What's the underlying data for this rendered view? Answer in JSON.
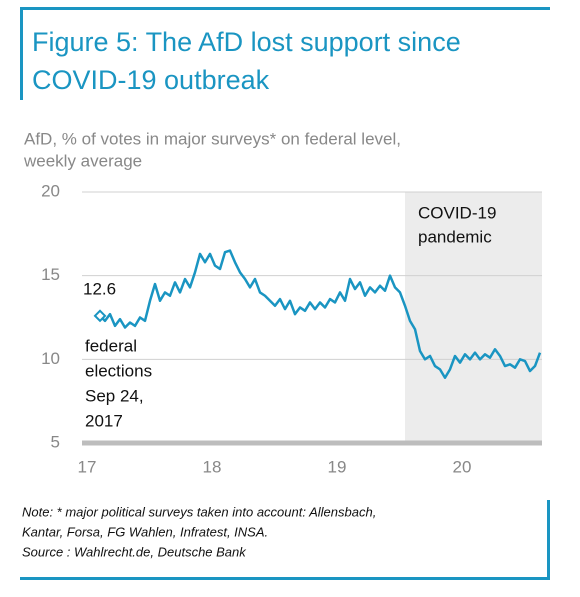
{
  "chart_data": {
    "type": "line",
    "title": [
      "Figure 5: The AfD lost support since",
      "COVID-19 outbreak"
    ],
    "subtitle": [
      "AfD, % of votes in major surveys* on federal level,",
      "weekly average"
    ],
    "x": [
      17.104,
      17.144,
      17.184,
      17.224,
      17.264,
      17.304,
      17.344,
      17.384,
      17.424,
      17.464,
      17.504,
      17.544,
      17.584,
      17.624,
      17.664,
      17.704,
      17.744,
      17.784,
      17.824,
      17.864,
      17.904,
      17.944,
      17.984,
      18.024,
      18.064,
      18.104,
      18.144,
      18.184,
      18.224,
      18.264,
      18.304,
      18.344,
      18.384,
      18.424,
      18.464,
      18.504,
      18.544,
      18.584,
      18.624,
      18.664,
      18.704,
      18.744,
      18.784,
      18.824,
      18.864,
      18.904,
      18.944,
      18.984,
      19.024,
      19.064,
      19.104,
      19.144,
      19.184,
      19.224,
      19.264,
      19.304,
      19.344,
      19.384,
      19.424,
      19.464,
      19.504,
      19.544,
      19.584,
      19.624,
      19.664,
      19.704,
      19.744,
      19.784,
      19.824,
      19.864,
      19.904,
      19.944,
      19.984,
      20.024,
      20.064,
      20.104,
      20.144,
      20.184,
      20.224,
      20.264,
      20.304,
      20.344,
      20.384,
      20.424,
      20.464,
      20.504,
      20.544,
      20.584,
      20.624
    ],
    "values": [
      12.6,
      12.3,
      12.7,
      12.0,
      12.4,
      11.9,
      12.2,
      12.0,
      12.5,
      12.3,
      13.5,
      14.5,
      13.5,
      14.0,
      13.8,
      14.6,
      14.0,
      14.8,
      14.3,
      15.2,
      16.3,
      15.8,
      16.3,
      15.6,
      15.4,
      16.4,
      16.5,
      15.8,
      15.2,
      14.8,
      14.3,
      14.8,
      14.0,
      13.8,
      13.5,
      13.2,
      13.6,
      13.0,
      13.5,
      12.7,
      13.1,
      12.9,
      13.4,
      13.0,
      13.4,
      13.1,
      13.6,
      13.4,
      14.0,
      13.5,
      14.8,
      14.2,
      14.6,
      13.8,
      14.3,
      14.0,
      14.4,
      14.1,
      15.0,
      14.3,
      14.0,
      13.2,
      12.3,
      11.8,
      10.5,
      10.0,
      10.2,
      9.6,
      9.4,
      8.9,
      9.4,
      10.2,
      9.8,
      10.3,
      10.0,
      10.4,
      10.0,
      10.3,
      10.1,
      10.6,
      10.2,
      9.6,
      9.7,
      9.5,
      10.0,
      9.9,
      9.3,
      9.6,
      10.4
    ],
    "color": "#1a95c2",
    "xlim": [
      16.96,
      20.64
    ],
    "xticks": [
      17,
      18,
      19,
      20
    ],
    "ylim": [
      5,
      20
    ],
    "yticks": [
      5,
      10,
      15,
      20
    ],
    "grid": true,
    "shaded_range": {
      "x": [
        19.544,
        20.64
      ],
      "color": "#ececec",
      "label": [
        "COVID-19",
        "pandemic"
      ]
    },
    "annotation": [
      "federal",
      "elections",
      "Sep 24,",
      "2017"
    ],
    "note": [
      "Note: * major political surveys taken into account: Allensbach,",
      "Kantar, Forsa, FG Wahlen, Infratest, INSA.",
      "Source : Wahlrecht.de, Deutsche Bank"
    ]
  }
}
